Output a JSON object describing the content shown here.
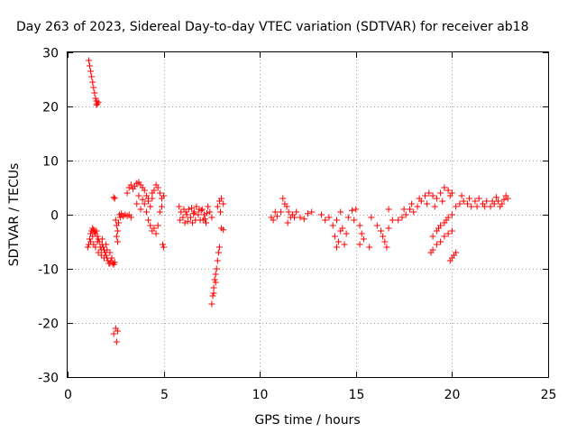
{
  "chart_data": {
    "type": "scatter",
    "title": "Day 263 of 2023, Sidereal Day-to-day VTEC variation (SDTVAR) for receiver ab18",
    "xlabel": "GPS time / hours",
    "ylabel": "SDTVAR / TECUs",
    "xlim": [
      0,
      25
    ],
    "ylim": [
      -30,
      30
    ],
    "x_ticks": [
      0,
      5,
      10,
      15,
      20,
      25
    ],
    "y_ticks": [
      -30,
      -20,
      -10,
      0,
      10,
      20,
      30
    ],
    "x_tick_labels": [
      "0",
      "5",
      "10",
      "15",
      "20",
      "25"
    ],
    "y_tick_labels": [
      "-30",
      "-20",
      "-10",
      "0",
      "10",
      "20",
      "30"
    ],
    "grid": true,
    "marker": "+",
    "color": "#ff0000",
    "series": [
      {
        "name": "ab18",
        "points": [
          [
            1.1,
            28.5
          ],
          [
            1.15,
            27.5
          ],
          [
            1.2,
            26.5
          ],
          [
            1.25,
            25.5
          ],
          [
            1.3,
            24.5
          ],
          [
            1.35,
            23.5
          ],
          [
            1.4,
            22.5
          ],
          [
            1.45,
            21.5
          ],
          [
            1.5,
            21.0
          ],
          [
            1.55,
            20.5
          ],
          [
            1.6,
            20.8
          ],
          [
            1.5,
            20.3
          ],
          [
            1.05,
            -6.0
          ],
          [
            1.1,
            -5.5
          ],
          [
            1.15,
            -4.5
          ],
          [
            1.2,
            -3.5
          ],
          [
            1.25,
            -3.0
          ],
          [
            1.3,
            -2.5
          ],
          [
            1.35,
            -2.8
          ],
          [
            1.4,
            -3.2
          ],
          [
            1.45,
            -3.5
          ],
          [
            1.5,
            -3.0
          ],
          [
            1.55,
            -4.0
          ],
          [
            1.6,
            -4.5
          ],
          [
            1.65,
            -5.0
          ],
          [
            1.7,
            -6.0
          ],
          [
            1.75,
            -6.5
          ],
          [
            1.8,
            -5.5
          ],
          [
            1.85,
            -6.0
          ],
          [
            1.9,
            -6.5
          ],
          [
            1.95,
            -7.0
          ],
          [
            2.0,
            -7.5
          ],
          [
            2.05,
            -8.0
          ],
          [
            2.1,
            -8.5
          ],
          [
            2.15,
            -9.0
          ],
          [
            2.2,
            -9.0
          ],
          [
            2.25,
            -8.5
          ],
          [
            2.3,
            -8.0
          ],
          [
            2.35,
            -9.0
          ],
          [
            2.4,
            -9.2
          ],
          [
            2.45,
            -8.8
          ],
          [
            1.2,
            -5.0
          ],
          [
            1.3,
            -4.0
          ],
          [
            1.45,
            -6.0
          ],
          [
            1.6,
            -7.0
          ],
          [
            1.75,
            -7.5
          ],
          [
            1.9,
            -8.0
          ],
          [
            2.05,
            -6.5
          ],
          [
            2.2,
            -7.0
          ],
          [
            1.35,
            -5.5
          ],
          [
            1.55,
            -5.0
          ],
          [
            1.8,
            -4.5
          ],
          [
            2.0,
            -5.5
          ],
          [
            2.4,
            3.2
          ],
          [
            2.45,
            3.0
          ],
          [
            2.5,
            -1.0
          ],
          [
            2.55,
            -2.0
          ],
          [
            2.6,
            -3.0
          ],
          [
            2.65,
            -1.5
          ],
          [
            2.7,
            0.0
          ],
          [
            2.75,
            -0.5
          ],
          [
            2.8,
            0.2
          ],
          [
            2.9,
            -0.3
          ],
          [
            3.0,
            0.0
          ],
          [
            3.1,
            -0.2
          ],
          [
            2.55,
            -4.0
          ],
          [
            2.6,
            -5.0
          ],
          [
            2.4,
            -22.0
          ],
          [
            2.5,
            -21.0
          ],
          [
            2.6,
            -21.5
          ],
          [
            2.55,
            -23.5
          ],
          [
            3.1,
            4.0
          ],
          [
            3.2,
            5.0
          ],
          [
            3.3,
            5.5
          ],
          [
            3.4,
            4.8
          ],
          [
            3.5,
            5.2
          ],
          [
            3.6,
            5.8
          ],
          [
            3.7,
            6.0
          ],
          [
            3.8,
            5.5
          ],
          [
            3.9,
            5.0
          ],
          [
            4.0,
            4.5
          ],
          [
            4.1,
            3.5
          ],
          [
            4.2,
            2.5
          ],
          [
            4.3,
            1.5
          ],
          [
            4.4,
            3.0
          ],
          [
            4.5,
            4.5
          ],
          [
            4.6,
            5.5
          ],
          [
            4.7,
            5.0
          ],
          [
            4.8,
            4.0
          ],
          [
            4.9,
            3.0
          ],
          [
            5.0,
            3.5
          ],
          [
            3.6,
            2.0
          ],
          [
            3.8,
            1.0
          ],
          [
            4.0,
            2.0
          ],
          [
            4.2,
            3.0
          ],
          [
            4.4,
            4.0
          ],
          [
            3.7,
            3.5
          ],
          [
            3.9,
            2.8
          ],
          [
            4.1,
            0.5
          ],
          [
            4.2,
            -1.0
          ],
          [
            4.3,
            -2.0
          ],
          [
            4.4,
            -3.0
          ],
          [
            4.5,
            -2.5
          ],
          [
            4.6,
            -3.5
          ],
          [
            4.7,
            -2.0
          ],
          [
            4.8,
            0.5
          ],
          [
            4.9,
            1.5
          ],
          [
            5.0,
            -6.0
          ],
          [
            4.95,
            -5.5
          ],
          [
            3.2,
            0.0
          ],
          [
            3.3,
            -0.5
          ],
          [
            5.8,
            1.5
          ],
          [
            5.9,
            0.5
          ],
          [
            6.0,
            -0.5
          ],
          [
            6.1,
            -1.5
          ],
          [
            6.2,
            0.0
          ],
          [
            6.3,
            1.0
          ],
          [
            6.4,
            -0.5
          ],
          [
            6.5,
            -1.5
          ],
          [
            6.6,
            0.5
          ],
          [
            6.7,
            1.5
          ],
          [
            6.8,
            0.0
          ],
          [
            6.9,
            -1.0
          ],
          [
            7.0,
            1.0
          ],
          [
            7.1,
            0.0
          ],
          [
            7.2,
            -1.5
          ],
          [
            7.3,
            1.5
          ],
          [
            7.4,
            0.5
          ],
          [
            7.5,
            -0.5
          ],
          [
            5.85,
            -1.0
          ],
          [
            6.05,
            1.0
          ],
          [
            6.25,
            -1.2
          ],
          [
            6.45,
            1.2
          ],
          [
            6.65,
            -1.0
          ],
          [
            6.85,
            1.0
          ],
          [
            7.05,
            -1.0
          ],
          [
            7.25,
            0.3
          ],
          [
            6.15,
            0.5
          ],
          [
            6.55,
            0.2
          ],
          [
            6.95,
            0.8
          ],
          [
            7.15,
            -0.8
          ],
          [
            7.5,
            -16.5
          ],
          [
            7.55,
            -15.0
          ],
          [
            7.6,
            -13.5
          ],
          [
            7.65,
            -12.0
          ],
          [
            7.7,
            -11.0
          ],
          [
            7.75,
            -10.0
          ],
          [
            7.8,
            -8.5
          ],
          [
            7.85,
            -7.0
          ],
          [
            7.9,
            -6.0
          ],
          [
            7.6,
            -14.5
          ],
          [
            7.7,
            -12.5
          ],
          [
            7.8,
            1.5
          ],
          [
            7.9,
            2.5
          ],
          [
            8.0,
            3.0
          ],
          [
            8.1,
            2.0
          ],
          [
            8.0,
            -2.5
          ],
          [
            8.1,
            -2.8
          ],
          [
            7.95,
            0.5
          ],
          [
            10.6,
            -0.5
          ],
          [
            10.7,
            -1.0
          ],
          [
            10.8,
            0.5
          ],
          [
            10.9,
            -0.3
          ],
          [
            11.1,
            0.5
          ],
          [
            11.2,
            3.0
          ],
          [
            11.3,
            2.0
          ],
          [
            11.4,
            1.5
          ],
          [
            11.5,
            0.5
          ],
          [
            11.6,
            -0.5
          ],
          [
            11.7,
            0.0
          ],
          [
            11.8,
            -0.5
          ],
          [
            11.9,
            0.5
          ],
          [
            12.1,
            -0.5
          ],
          [
            12.3,
            -0.8
          ],
          [
            12.5,
            0.2
          ],
          [
            12.7,
            0.5
          ],
          [
            11.45,
            -1.5
          ],
          [
            13.2,
            0.0
          ],
          [
            13.4,
            -1.0
          ],
          [
            13.6,
            -0.5
          ],
          [
            13.8,
            -2.0
          ],
          [
            13.9,
            -4.0
          ],
          [
            14.0,
            -6.0
          ],
          [
            14.1,
            -5.0
          ],
          [
            14.2,
            -3.0
          ],
          [
            14.3,
            -2.5
          ],
          [
            14.4,
            -5.5
          ],
          [
            14.5,
            -3.5
          ],
          [
            14.0,
            -1.0
          ],
          [
            14.2,
            0.5
          ],
          [
            14.6,
            -0.5
          ],
          [
            14.8,
            0.8
          ],
          [
            15.0,
            1.0
          ],
          [
            14.9,
            -1.0
          ],
          [
            15.2,
            -2.0
          ],
          [
            15.3,
            -3.5
          ],
          [
            15.4,
            -4.5
          ],
          [
            15.2,
            -5.5
          ],
          [
            15.7,
            -6.0
          ],
          [
            15.8,
            -0.5
          ],
          [
            16.1,
            -2.0
          ],
          [
            16.3,
            -3.0
          ],
          [
            16.4,
            -4.0
          ],
          [
            16.5,
            -5.0
          ],
          [
            16.6,
            -6.0
          ],
          [
            16.7,
            -2.5
          ],
          [
            16.9,
            -1.0
          ],
          [
            16.7,
            1.0
          ],
          [
            17.2,
            -1.0
          ],
          [
            17.4,
            -0.5
          ],
          [
            17.6,
            0.0
          ],
          [
            17.8,
            1.0
          ],
          [
            18.0,
            0.5
          ],
          [
            18.2,
            1.5
          ],
          [
            18.4,
            2.5
          ],
          [
            18.6,
            3.5
          ],
          [
            18.8,
            4.0
          ],
          [
            19.0,
            3.5
          ],
          [
            19.2,
            3.0
          ],
          [
            19.4,
            4.0
          ],
          [
            19.6,
            5.0
          ],
          [
            19.8,
            4.5
          ],
          [
            20.0,
            4.0
          ],
          [
            17.5,
            1.0
          ],
          [
            17.9,
            2.0
          ],
          [
            18.3,
            3.0
          ],
          [
            18.7,
            2.0
          ],
          [
            19.1,
            1.5
          ],
          [
            19.5,
            2.5
          ],
          [
            19.9,
            3.5
          ],
          [
            18.9,
            -7.0
          ],
          [
            19.0,
            -6.5
          ],
          [
            19.2,
            -5.5
          ],
          [
            19.4,
            -5.0
          ],
          [
            19.6,
            -4.0
          ],
          [
            19.8,
            -3.5
          ],
          [
            20.0,
            -3.0
          ],
          [
            19.9,
            -8.5
          ],
          [
            20.0,
            -8.0
          ],
          [
            20.1,
            -7.5
          ],
          [
            20.2,
            -7.0
          ],
          [
            19.0,
            -4.0
          ],
          [
            19.2,
            -3.0
          ],
          [
            19.4,
            -2.0
          ],
          [
            19.6,
            -1.5
          ],
          [
            19.8,
            -0.5
          ],
          [
            20.0,
            0.0
          ],
          [
            19.3,
            -2.5
          ],
          [
            19.7,
            -1.0
          ],
          [
            20.2,
            1.5
          ],
          [
            20.4,
            2.0
          ],
          [
            20.6,
            2.5
          ],
          [
            20.8,
            2.0
          ],
          [
            21.0,
            1.5
          ],
          [
            21.2,
            2.5
          ],
          [
            21.4,
            3.0
          ],
          [
            21.6,
            2.0
          ],
          [
            21.8,
            2.5
          ],
          [
            22.0,
            1.5
          ],
          [
            22.2,
            2.0
          ],
          [
            22.4,
            2.5
          ],
          [
            22.6,
            2.0
          ],
          [
            22.8,
            3.5
          ],
          [
            22.9,
            3.0
          ],
          [
            21.3,
            1.5
          ],
          [
            21.7,
            1.5
          ],
          [
            22.1,
            2.5
          ],
          [
            22.5,
            1.5
          ],
          [
            22.7,
            2.8
          ],
          [
            20.5,
            3.5
          ],
          [
            20.9,
            3.0
          ],
          [
            22.3,
            3.2
          ]
        ]
      }
    ]
  }
}
